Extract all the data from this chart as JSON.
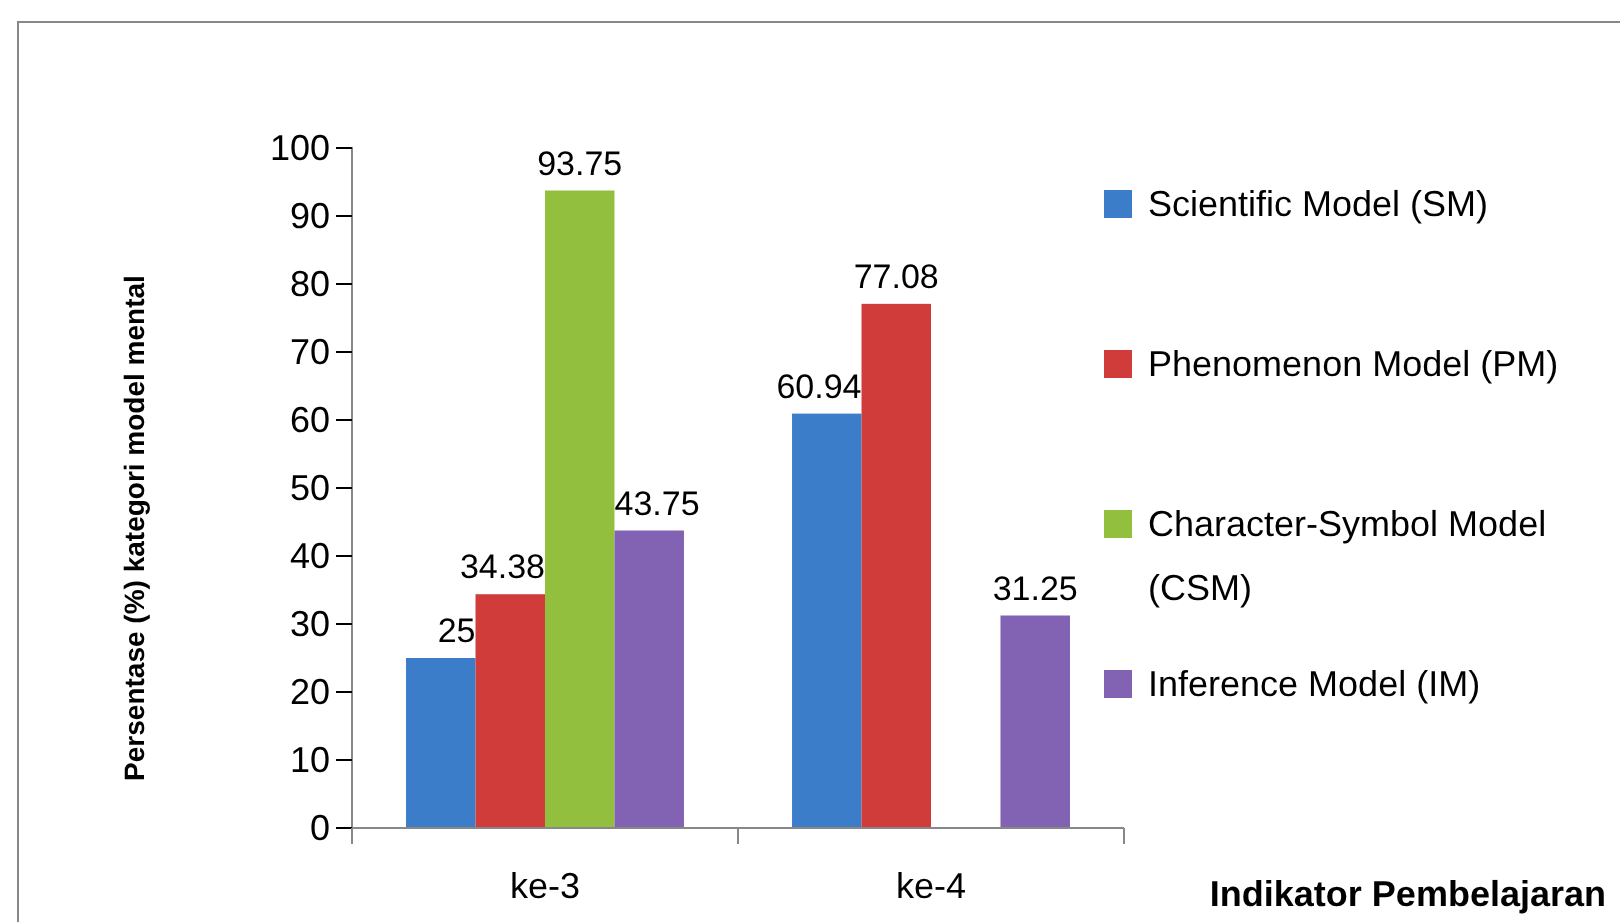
{
  "chart_data": {
    "type": "bar",
    "xlabel": "Indikator Pembelajaran",
    "ylabel": "Persentase (%) kategori model mental",
    "categories": [
      "ke-3",
      "ke-4"
    ],
    "series": [
      {
        "name": "Scientific Model (SM)",
        "color": "#3b7dc8",
        "values": [
          25,
          60.94
        ]
      },
      {
        "name": "Phenomenon Model (PM)",
        "color": "#d03c3a",
        "values": [
          34.38,
          77.08
        ]
      },
      {
        "name": "Character-Symbol Model (CSM)",
        "color": "#92c03e",
        "values": [
          93.75,
          null
        ]
      },
      {
        "name": "Inference Model (IM)",
        "color": "#8262b2",
        "values": [
          43.75,
          31.25
        ]
      }
    ],
    "ylim": [
      0,
      100
    ],
    "yticks": [
      0,
      10,
      20,
      30,
      40,
      50,
      60,
      70,
      80,
      90,
      100
    ],
    "data_labels": true,
    "legend": "right",
    "grid": false
  }
}
